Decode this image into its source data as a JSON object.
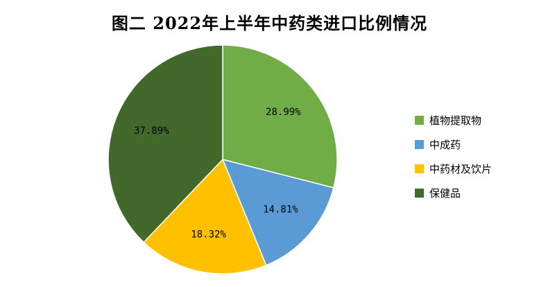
{
  "chart_data": {
    "type": "pie",
    "title": "图二 2022年上半年中药类进口比例情况",
    "legend_position": "right",
    "slices": [
      {
        "label": "植物提取物",
        "value": 28.99,
        "display": "28.99%",
        "color": "#70AD47"
      },
      {
        "label": "中成药",
        "value": 14.81,
        "display": "14.81%",
        "color": "#5B9BD5"
      },
      {
        "label": "中药材及饮片",
        "value": 18.32,
        "display": "18.32%",
        "color": "#FFC000"
      },
      {
        "label": "保健品",
        "value": 37.89,
        "display": "37.89%",
        "color": "#43682B"
      }
    ]
  }
}
